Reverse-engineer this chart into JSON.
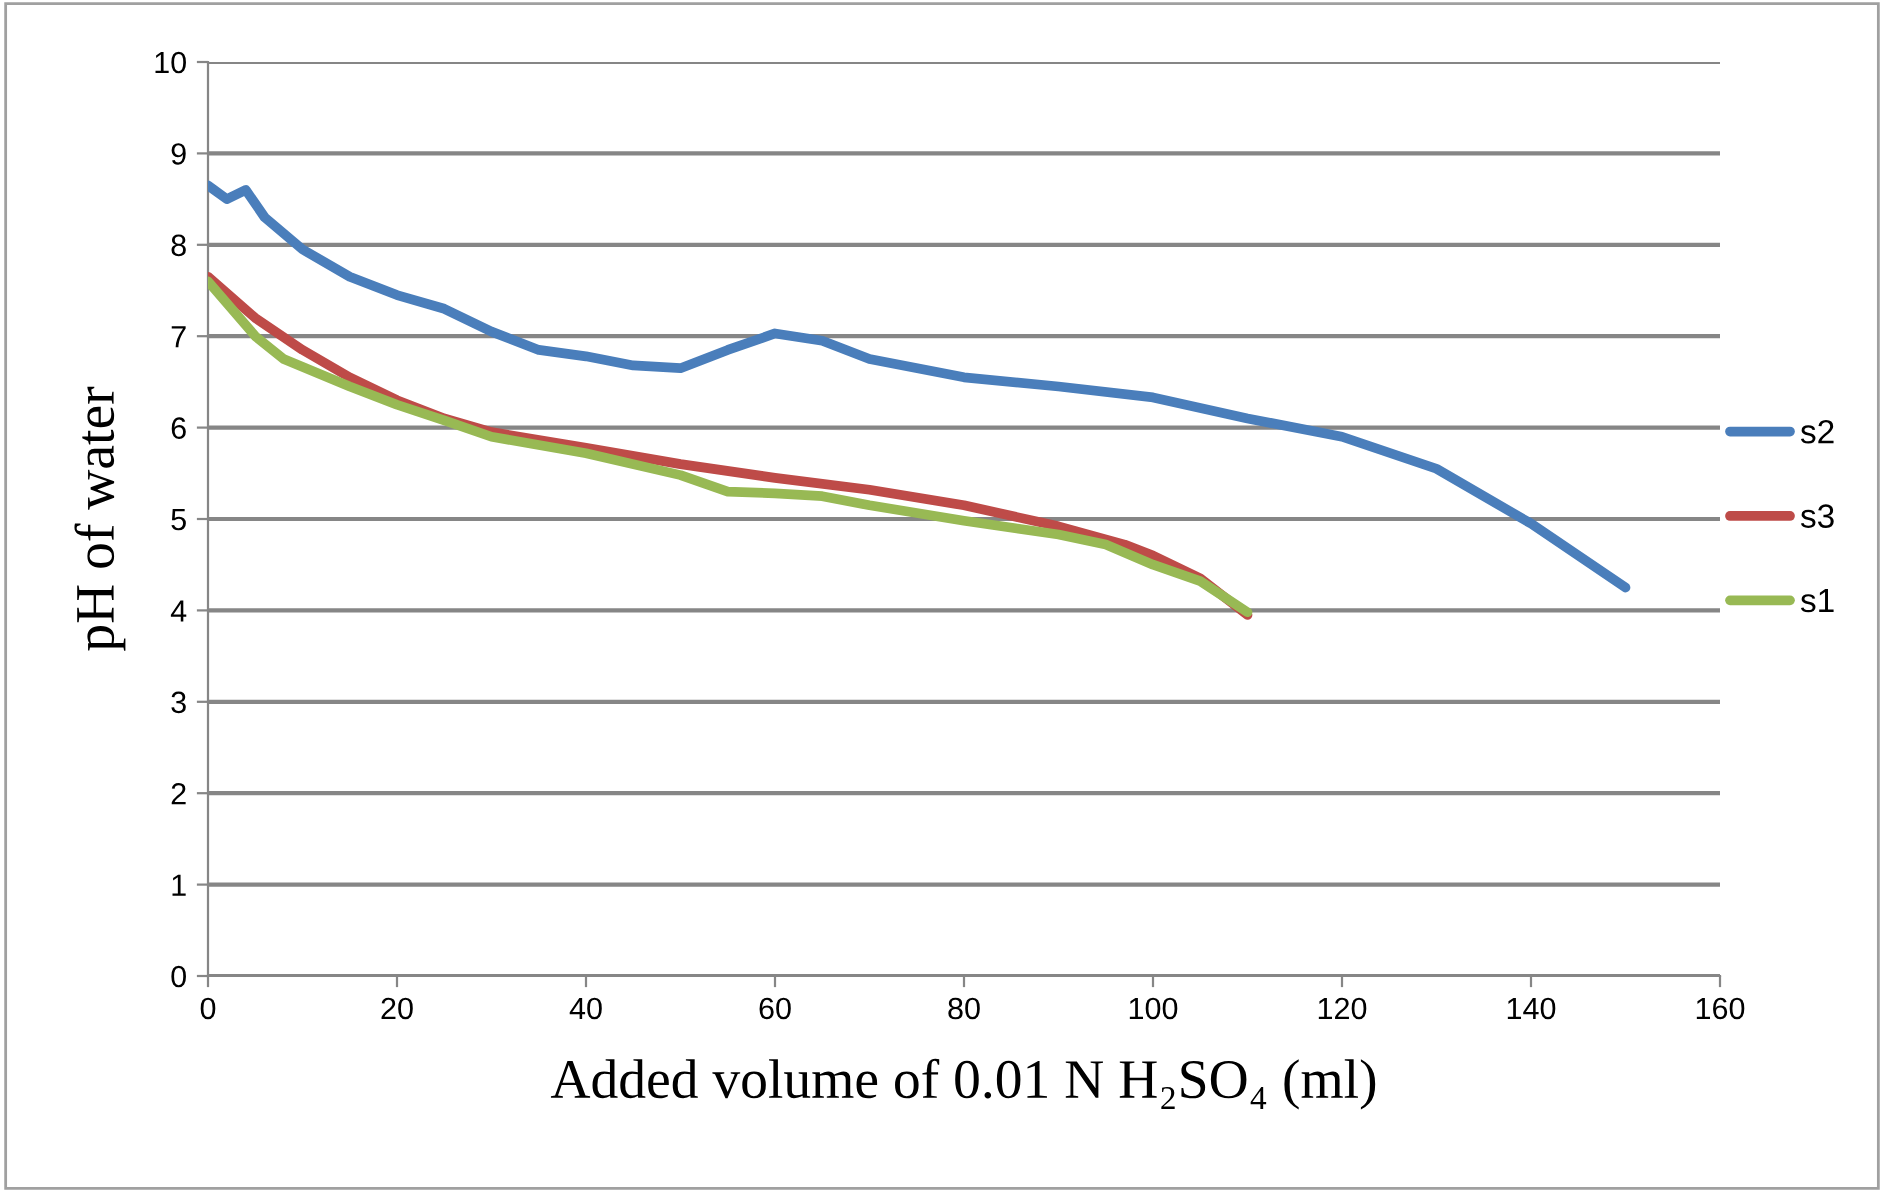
{
  "chart_data": {
    "type": "line",
    "xlabel": "Added volume of 0.01 N H₂SO₄ (ml)",
    "ylabel": "pH of water",
    "xlim": [
      0,
      160
    ],
    "xticks": [
      0,
      20,
      40,
      60,
      80,
      100,
      120,
      140,
      160
    ],
    "ylim": [
      0,
      10
    ],
    "yticks": [
      0,
      1,
      2,
      3,
      4,
      5,
      6,
      7,
      8,
      9,
      10
    ],
    "grid": "y",
    "legend": "right",
    "marker": "none",
    "line_style": "solid",
    "series": [
      {
        "name": "s2",
        "color": "#4a7ebb",
        "x": [
          0,
          2,
          4,
          6,
          10,
          15,
          20,
          25,
          30,
          35,
          40,
          45,
          50,
          55,
          60,
          65,
          70,
          80,
          90,
          100,
          110,
          120,
          130,
          140,
          150
        ],
        "values": [
          8.65,
          8.5,
          8.6,
          8.3,
          7.95,
          7.65,
          7.45,
          7.3,
          7.05,
          6.85,
          6.78,
          6.68,
          6.65,
          6.85,
          7.03,
          6.95,
          6.75,
          6.55,
          6.45,
          6.33,
          6.1,
          5.9,
          5.55,
          4.95,
          4.25
        ]
      },
      {
        "name": "s3",
        "color": "#be4b48",
        "x": [
          0,
          5,
          10,
          15,
          20,
          25,
          30,
          40,
          50,
          60,
          70,
          80,
          90,
          97,
          100,
          105,
          110
        ],
        "values": [
          7.65,
          7.2,
          6.85,
          6.55,
          6.3,
          6.1,
          5.95,
          5.78,
          5.6,
          5.45,
          5.32,
          5.15,
          4.92,
          4.72,
          4.6,
          4.35,
          3.95
        ]
      },
      {
        "name": "s1",
        "color": "#98b954",
        "x": [
          0,
          5,
          8,
          15,
          20,
          25,
          30,
          40,
          50,
          55,
          60,
          65,
          70,
          80,
          90,
          95,
          100,
          105,
          110
        ],
        "values": [
          7.6,
          7.0,
          6.75,
          6.45,
          6.25,
          6.08,
          5.9,
          5.72,
          5.48,
          5.3,
          5.28,
          5.25,
          5.15,
          4.98,
          4.83,
          4.72,
          4.5,
          4.32,
          3.98
        ]
      }
    ]
  }
}
